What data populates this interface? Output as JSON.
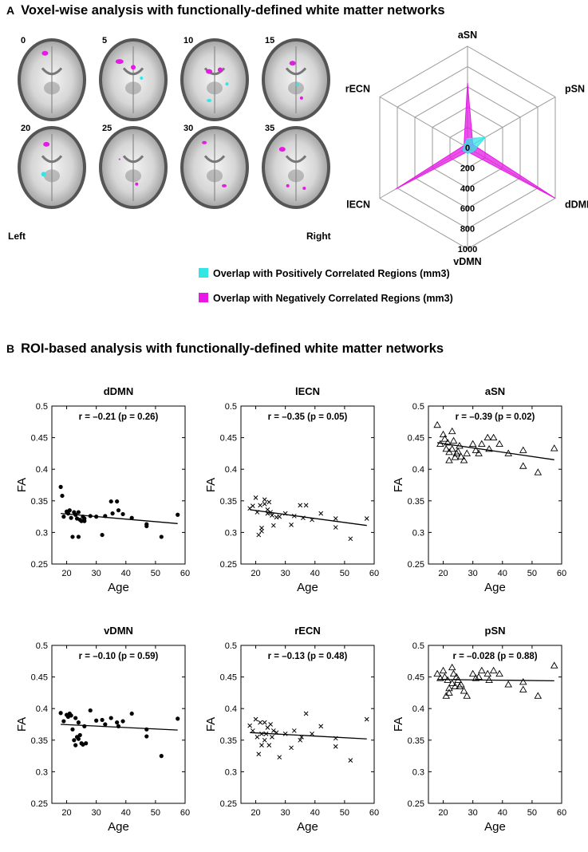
{
  "panel_a": {
    "letter": "A",
    "title": "Voxel-wise analysis with functionally-defined white matter networks",
    "slices": [
      "0",
      "5",
      "10",
      "15",
      "20",
      "25",
      "30",
      "35"
    ],
    "left_label": "Left",
    "right_label": "Right",
    "legend": {
      "positive": "Overlap with Positively Correlated Regions (mm3)",
      "negative": "Overlap with Negatively Correlated Regions (mm3)",
      "positive_color": "#33e6e6",
      "negative_color": "#e619e6"
    }
  },
  "panel_b": {
    "letter": "B",
    "title": "ROI-based analysis with functionally-defined white matter networks"
  },
  "chart_data": [
    {
      "type": "radar",
      "axes": [
        "aSN",
        "pSN",
        "dDMN",
        "vDMN",
        "lECN",
        "rECN"
      ],
      "radial_ticks": [
        0,
        200,
        400,
        600,
        800,
        1000
      ],
      "rmax": 1000,
      "series": [
        {
          "name": "Overlap with Negatively Correlated Regions (mm3)",
          "color": "#e619e6",
          "values": [
            640,
            60,
            1000,
            40,
            820,
            40
          ]
        },
        {
          "name": "Overlap with Positively Correlated Regions (mm3)",
          "color": "#33e6e6",
          "values": [
            90,
            200,
            70,
            60,
            50,
            40
          ]
        }
      ]
    },
    {
      "type": "scatter",
      "title": "dDMN",
      "stat": "r = –0.21 (p = 0.26)",
      "marker": "dot",
      "xlabel": "Age",
      "ylabel": "FA",
      "xlim": [
        15,
        60
      ],
      "ylim": [
        0.25,
        0.5
      ],
      "xticks": [
        "20",
        "30",
        "40",
        "50",
        "60"
      ],
      "yticks": [
        "0.25",
        "0.3",
        "0.35",
        "0.4",
        "0.45",
        "0.5"
      ],
      "fit": [
        [
          18,
          0.33
        ],
        [
          57.5,
          0.314
        ]
      ],
      "x": [
        18,
        18.5,
        19,
        20,
        20.5,
        21,
        21.5,
        22,
        22.5,
        23,
        23.5,
        24,
        24,
        24.5,
        25,
        25.5,
        26,
        26,
        28,
        30,
        32,
        33,
        35,
        35.5,
        37,
        37.5,
        39,
        42,
        47,
        47,
        52,
        57.5
      ],
      "y": [
        0.372,
        0.358,
        0.325,
        0.333,
        0.33,
        0.335,
        0.323,
        0.293,
        0.332,
        0.328,
        0.322,
        0.332,
        0.293,
        0.32,
        0.318,
        0.325,
        0.318,
        0.322,
        0.326,
        0.325,
        0.296,
        0.326,
        0.349,
        0.33,
        0.349,
        0.335,
        0.329,
        0.323,
        0.313,
        0.31,
        0.293,
        0.328
      ]
    },
    {
      "type": "scatter",
      "title": "lECN",
      "stat": "r = –0.35 (p = 0.05)",
      "marker": "x",
      "xlabel": "Age",
      "ylabel": "FA",
      "xlim": [
        15,
        60
      ],
      "ylim": [
        0.25,
        0.5
      ],
      "xticks": [
        "20",
        "30",
        "40",
        "50",
        "60"
      ],
      "yticks": [
        "0.25",
        "0.3",
        "0.35",
        "0.4",
        "0.45",
        "0.5"
      ],
      "fit": [
        [
          18,
          0.336
        ],
        [
          57.5,
          0.311
        ]
      ],
      "x": [
        18,
        19,
        20,
        20.5,
        21,
        21.5,
        22,
        22,
        23,
        23,
        24,
        24,
        24.5,
        25,
        25.5,
        26,
        27,
        28,
        30,
        32,
        33,
        35,
        36,
        37,
        39,
        42,
        47,
        47,
        52,
        57.5
      ],
      "y": [
        0.338,
        0.342,
        0.355,
        0.332,
        0.296,
        0.343,
        0.307,
        0.302,
        0.352,
        0.345,
        0.336,
        0.33,
        0.348,
        0.332,
        0.327,
        0.311,
        0.324,
        0.325,
        0.33,
        0.312,
        0.326,
        0.343,
        0.323,
        0.343,
        0.32,
        0.33,
        0.322,
        0.308,
        0.29,
        0.322
      ]
    },
    {
      "type": "scatter",
      "title": "aSN",
      "stat": "r = –0.39 (p = 0.02)",
      "marker": "triangle",
      "xlabel": "Age",
      "ylabel": "FA",
      "xlim": [
        15,
        60
      ],
      "ylim": [
        0.25,
        0.5
      ],
      "xticks": [
        "20",
        "30",
        "40",
        "50",
        "60"
      ],
      "yticks": [
        "0.25",
        "0.3",
        "0.35",
        "0.4",
        "0.45",
        "0.5"
      ],
      "fit": [
        [
          18,
          0.442
        ],
        [
          57.5,
          0.415
        ]
      ],
      "x": [
        18,
        19,
        20,
        20.5,
        21,
        21.5,
        22,
        22,
        23,
        23,
        23.5,
        24,
        24.5,
        25,
        25.5,
        26,
        27,
        28,
        30,
        31,
        32,
        33,
        35,
        35.5,
        37,
        39,
        42,
        47,
        47,
        52,
        57.5
      ],
      "y": [
        0.47,
        0.44,
        0.455,
        0.448,
        0.432,
        0.442,
        0.427,
        0.414,
        0.46,
        0.432,
        0.445,
        0.419,
        0.425,
        0.428,
        0.437,
        0.42,
        0.414,
        0.425,
        0.44,
        0.43,
        0.425,
        0.44,
        0.45,
        0.432,
        0.45,
        0.44,
        0.425,
        0.43,
        0.405,
        0.395,
        0.433
      ]
    },
    {
      "type": "scatter",
      "title": "vDMN",
      "stat": "r = –0.10 (p = 0.59)",
      "marker": "dot",
      "xlabel": "Age",
      "ylabel": "FA",
      "xlim": [
        15,
        60
      ],
      "ylim": [
        0.25,
        0.5
      ],
      "xticks": [
        "20",
        "30",
        "40",
        "50",
        "60"
      ],
      "yticks": [
        "0.25",
        "0.3",
        "0.35",
        "0.4",
        "0.45",
        "0.5"
      ],
      "fit": [
        [
          18,
          0.375
        ],
        [
          57.5,
          0.366
        ]
      ],
      "x": [
        18,
        19,
        20,
        20.5,
        21,
        21.5,
        22,
        22.5,
        23,
        23,
        23.5,
        24,
        24,
        24.5,
        25,
        25.5,
        26,
        26.5,
        28,
        30,
        32,
        33,
        35,
        37,
        37.5,
        39,
        42,
        47,
        47,
        52,
        57.5
      ],
      "y": [
        0.393,
        0.38,
        0.39,
        0.387,
        0.392,
        0.389,
        0.367,
        0.35,
        0.342,
        0.385,
        0.355,
        0.352,
        0.378,
        0.358,
        0.345,
        0.343,
        0.372,
        0.345,
        0.397,
        0.381,
        0.382,
        0.375,
        0.385,
        0.378,
        0.372,
        0.38,
        0.392,
        0.367,
        0.356,
        0.325,
        0.384
      ]
    },
    {
      "type": "scatter",
      "title": "rECN",
      "stat": "r = –0.13 (p = 0.48)",
      "marker": "x",
      "xlabel": "Age",
      "ylabel": "FA",
      "xlim": [
        15,
        60
      ],
      "ylim": [
        0.25,
        0.5
      ],
      "xticks": [
        "20",
        "30",
        "40",
        "50",
        "60"
      ],
      "yticks": [
        "0.25",
        "0.3",
        "0.35",
        "0.4",
        "0.45",
        "0.5"
      ],
      "fit": [
        [
          18,
          0.362
        ],
        [
          57.5,
          0.352
        ]
      ],
      "x": [
        18,
        19,
        20,
        20.5,
        21,
        21.5,
        22,
        22,
        23,
        23,
        23.5,
        24,
        24.5,
        25,
        25.5,
        26,
        27,
        28,
        30,
        32,
        33,
        35,
        35.5,
        37,
        39,
        42,
        47,
        47,
        52,
        57.5
      ],
      "y": [
        0.373,
        0.365,
        0.383,
        0.355,
        0.328,
        0.378,
        0.36,
        0.342,
        0.378,
        0.35,
        0.36,
        0.37,
        0.342,
        0.375,
        0.355,
        0.365,
        0.362,
        0.323,
        0.36,
        0.338,
        0.365,
        0.35,
        0.355,
        0.392,
        0.36,
        0.372,
        0.353,
        0.34,
        0.318,
        0.383
      ]
    },
    {
      "type": "scatter",
      "title": "pSN",
      "stat": "r = –0.028 (p = 0.88)",
      "marker": "triangle",
      "xlabel": "Age",
      "ylabel": "FA",
      "xlim": [
        15,
        60
      ],
      "ylim": [
        0.25,
        0.5
      ],
      "xticks": [
        "20",
        "30",
        "40",
        "50",
        "60"
      ],
      "yticks": [
        "0.25",
        "0.3",
        "0.35",
        "0.4",
        "0.45",
        "0.5"
      ],
      "fit": [
        [
          18,
          0.446
        ],
        [
          57.5,
          0.444
        ]
      ],
      "x": [
        18,
        19,
        20,
        20.5,
        21,
        21.5,
        22,
        22,
        23,
        23,
        23.5,
        24,
        24.5,
        25,
        25.5,
        26,
        27,
        28,
        30,
        31,
        32,
        33,
        35,
        35.5,
        37,
        39,
        42,
        47,
        47,
        52,
        57.5
      ],
      "y": [
        0.455,
        0.448,
        0.46,
        0.45,
        0.42,
        0.445,
        0.432,
        0.425,
        0.465,
        0.44,
        0.455,
        0.435,
        0.45,
        0.445,
        0.435,
        0.438,
        0.428,
        0.42,
        0.455,
        0.448,
        0.45,
        0.46,
        0.455,
        0.445,
        0.46,
        0.455,
        0.438,
        0.442,
        0.43,
        0.42,
        0.468
      ]
    }
  ]
}
